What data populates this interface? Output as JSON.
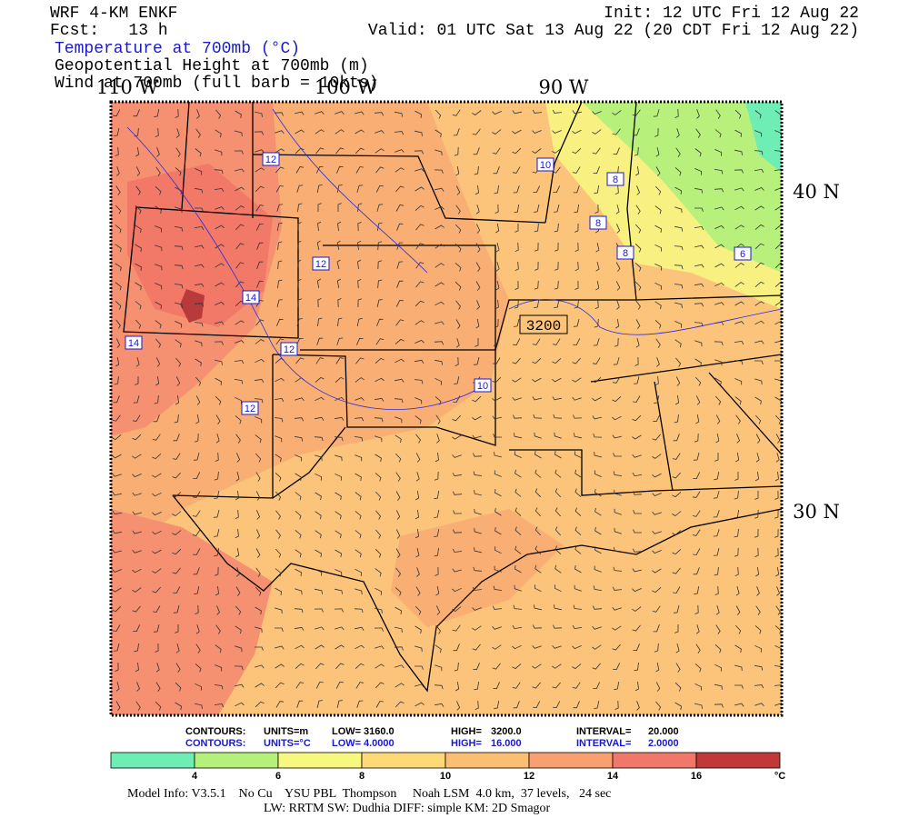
{
  "header": {
    "model": "WRF 4-KM ENKF",
    "forecast": "Fcst:   13 h",
    "field1": "Temperature at 700mb (°C)",
    "field2": "Geopotential Height at 700mb (m)",
    "field3": "Wind at 700mb (full barb = 10kts)",
    "init": "Init: 12 UTC Fri 12 Aug 22",
    "valid": "Valid: 01 UTC Sat 13 Aug 22 (20 CDT Fri 12 Aug 22)"
  },
  "map": {
    "lon_labels": [
      "110 W",
      "100 W",
      "90 W"
    ],
    "lat_labels": [
      "40 N",
      "30 N"
    ],
    "contour_labels": [
      "12",
      "12",
      "14",
      "14",
      "12",
      "12",
      "10",
      "10",
      "8",
      "8",
      "8",
      "6",
      "3200"
    ]
  },
  "contours": [
    [
      "CONTOURS:",
      "UNITS=m",
      "LOW=",
      "3160.0",
      "HIGH=",
      "3200.0",
      "INTERVAL=",
      "20.000"
    ],
    [
      "CONTOURS:",
      "UNITS=°C",
      "LOW=",
      "4.0000",
      "HIGH=",
      "16.000",
      "INTERVAL=",
      "2.0000"
    ]
  ],
  "colorbar": {
    "labels": [
      "4",
      "6",
      "8",
      "10",
      "12",
      "14",
      "16"
    ],
    "unit": "°C"
  },
  "footer": {
    "line1": "Model Info: V3.5.1    No Cu    YSU PBL  Thompson     Noah LSM  4.0 km,  37 levels,   24 sec",
    "line2": "LW: RRTM SW: Dudhia  DIFF: simple KM: 2D Smagor"
  }
}
